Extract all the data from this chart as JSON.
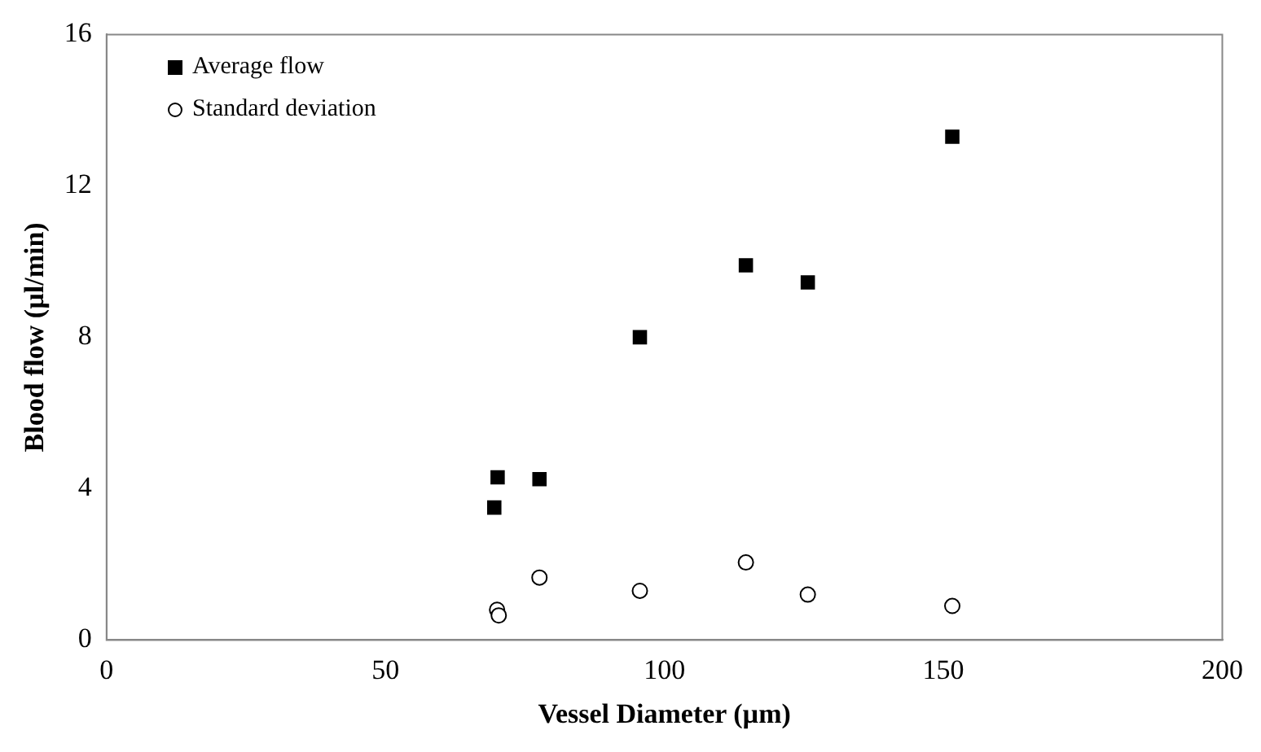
{
  "chart_data": {
    "type": "scatter",
    "xlabel": "Vessel Diameter (µm)",
    "ylabel": "Blood flow (µl/min)",
    "xlim": [
      0,
      200
    ],
    "xticks": [
      0,
      50,
      100,
      150,
      200
    ],
    "ylim": [
      0,
      16
    ],
    "yticks": [
      0,
      4,
      8,
      12,
      16
    ],
    "grid": false,
    "legend": "top left",
    "series": [
      {
        "name": "Average flow",
        "color": "#000000",
        "marker": "square",
        "x": [
          69.5,
          70.1,
          77.6,
          95.6,
          114.6,
          125.7,
          151.6
        ],
        "values": [
          3.5,
          4.3,
          4.25,
          8.0,
          9.9,
          9.45,
          13.3
        ]
      },
      {
        "name": "Standard deviation",
        "color": "#000000",
        "marker": "circle",
        "x": [
          70,
          70.3,
          77.6,
          95.6,
          114.6,
          125.7,
          151.6
        ],
        "values": [
          0.8,
          0.65,
          1.65,
          1.3,
          2.05,
          1.2,
          0.9
        ]
      }
    ]
  }
}
